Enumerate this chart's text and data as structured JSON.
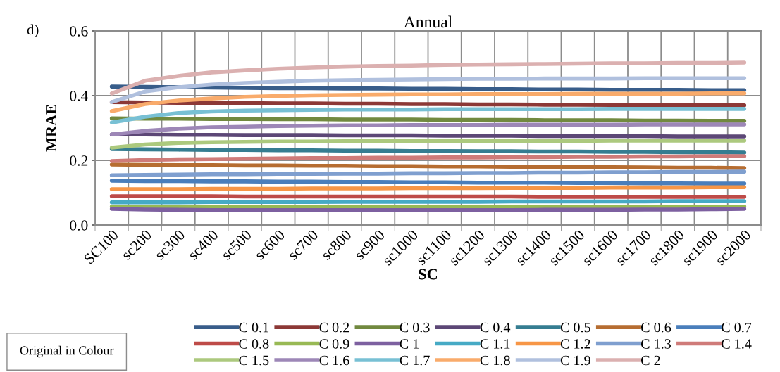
{
  "chart_data": {
    "type": "line",
    "title": "Annual",
    "xlabel": "SC",
    "ylabel": "MRAE",
    "annotations": [
      "d)",
      "Original in Colour"
    ],
    "categories": [
      "SC100",
      "sc200",
      "sc300",
      "sc400",
      "sc500",
      "sc600",
      "sc700",
      "sc800",
      "sc900",
      "sc1000",
      "sc1100",
      "sc1200",
      "sc1300",
      "sc1400",
      "sc1500",
      "sc1600",
      "sc1700",
      "sc1800",
      "sc1900",
      "sc2000"
    ],
    "ylim": [
      0,
      0.6
    ],
    "yticks": [
      {
        "value": 0,
        "label": "0.0"
      },
      {
        "value": 0.2,
        "label": "0.2"
      },
      {
        "value": 0.4,
        "label": "0.4"
      },
      {
        "value": 0.6,
        "label": "0.6"
      }
    ],
    "grid": true,
    "legend": "bottom",
    "marker": "none",
    "line_style": "solid",
    "series": [
      {
        "name": "C 0.1",
        "color": "#385d8a",
        "values": [
          0.428,
          0.427,
          0.426,
          0.425,
          0.424,
          0.423,
          0.423,
          0.422,
          0.422,
          0.421,
          0.421,
          0.42,
          0.42,
          0.419,
          0.419,
          0.418,
          0.418,
          0.418,
          0.417,
          0.417
        ]
      },
      {
        "name": "C 0.2",
        "color": "#8c3836",
        "values": [
          0.38,
          0.379,
          0.378,
          0.377,
          0.377,
          0.376,
          0.376,
          0.375,
          0.375,
          0.374,
          0.374,
          0.373,
          0.373,
          0.372,
          0.372,
          0.371,
          0.371,
          0.371,
          0.37,
          0.37
        ]
      },
      {
        "name": "C 0.3",
        "color": "#71893f",
        "values": [
          0.33,
          0.329,
          0.329,
          0.328,
          0.328,
          0.327,
          0.327,
          0.326,
          0.326,
          0.326,
          0.325,
          0.325,
          0.325,
          0.324,
          0.324,
          0.324,
          0.323,
          0.323,
          0.322,
          0.322
        ]
      },
      {
        "name": "C 0.4",
        "color": "#5c4776",
        "values": [
          0.28,
          0.28,
          0.279,
          0.279,
          0.278,
          0.278,
          0.278,
          0.277,
          0.277,
          0.277,
          0.276,
          0.276,
          0.276,
          0.275,
          0.275,
          0.275,
          0.275,
          0.274,
          0.274,
          0.274
        ]
      },
      {
        "name": "C 0.5",
        "color": "#357d91",
        "values": [
          0.235,
          0.234,
          0.233,
          0.232,
          0.232,
          0.231,
          0.231,
          0.23,
          0.23,
          0.229,
          0.229,
          0.228,
          0.228,
          0.227,
          0.227,
          0.226,
          0.226,
          0.225,
          0.225,
          0.224
        ]
      },
      {
        "name": "C 0.6",
        "color": "#b66d31",
        "values": [
          0.187,
          0.186,
          0.185,
          0.185,
          0.184,
          0.184,
          0.183,
          0.183,
          0.182,
          0.182,
          0.181,
          0.181,
          0.18,
          0.18,
          0.179,
          0.179,
          0.178,
          0.177,
          0.177,
          0.176
        ]
      },
      {
        "name": "C 0.7",
        "color": "#4a7ebb",
        "values": [
          0.137,
          0.136,
          0.136,
          0.135,
          0.135,
          0.134,
          0.134,
          0.133,
          0.133,
          0.132,
          0.132,
          0.131,
          0.131,
          0.131,
          0.13,
          0.13,
          0.129,
          0.129,
          0.128,
          0.128
        ]
      },
      {
        "name": "C 0.8",
        "color": "#be4b48",
        "values": [
          0.089,
          0.089,
          0.089,
          0.089,
          0.088,
          0.088,
          0.088,
          0.088,
          0.088,
          0.088,
          0.088,
          0.088,
          0.088,
          0.087,
          0.087,
          0.087,
          0.087,
          0.087,
          0.087,
          0.087
        ]
      },
      {
        "name": "C 0.9",
        "color": "#98b954",
        "values": [
          0.057,
          0.057,
          0.057,
          0.057,
          0.057,
          0.057,
          0.057,
          0.057,
          0.057,
          0.057,
          0.057,
          0.057,
          0.057,
          0.057,
          0.057,
          0.057,
          0.057,
          0.057,
          0.057,
          0.057
        ]
      },
      {
        "name": "C 1",
        "color": "#7d60a0",
        "values": [
          0.05,
          0.048,
          0.047,
          0.046,
          0.046,
          0.046,
          0.046,
          0.046,
          0.046,
          0.046,
          0.046,
          0.046,
          0.046,
          0.047,
          0.047,
          0.047,
          0.048,
          0.048,
          0.049,
          0.05
        ]
      },
      {
        "name": "C 1.1",
        "color": "#46aac5",
        "values": [
          0.07,
          0.07,
          0.07,
          0.071,
          0.071,
          0.071,
          0.071,
          0.072,
          0.072,
          0.072,
          0.072,
          0.072,
          0.073,
          0.073,
          0.073,
          0.073,
          0.073,
          0.074,
          0.074,
          0.074
        ]
      },
      {
        "name": "C 1.2",
        "color": "#f79646",
        "values": [
          0.111,
          0.111,
          0.111,
          0.112,
          0.112,
          0.112,
          0.113,
          0.113,
          0.113,
          0.114,
          0.114,
          0.114,
          0.115,
          0.115,
          0.115,
          0.116,
          0.116,
          0.116,
          0.117,
          0.117
        ]
      },
      {
        "name": "C 1.3",
        "color": "#7f9fcf",
        "values": [
          0.154,
          0.155,
          0.156,
          0.157,
          0.157,
          0.158,
          0.158,
          0.159,
          0.159,
          0.16,
          0.16,
          0.161,
          0.161,
          0.162,
          0.162,
          0.163,
          0.163,
          0.164,
          0.164,
          0.165
        ]
      },
      {
        "name": "C 1.4",
        "color": "#cf7b79",
        "values": [
          0.198,
          0.201,
          0.203,
          0.204,
          0.205,
          0.206,
          0.207,
          0.207,
          0.208,
          0.208,
          0.209,
          0.209,
          0.21,
          0.21,
          0.211,
          0.211,
          0.212,
          0.212,
          0.213,
          0.213
        ]
      },
      {
        "name": "C 1.5",
        "color": "#acc97e",
        "values": [
          0.239,
          0.249,
          0.254,
          0.256,
          0.257,
          0.258,
          0.258,
          0.259,
          0.259,
          0.259,
          0.26,
          0.26,
          0.26,
          0.26,
          0.26,
          0.261,
          0.261,
          0.261,
          0.261,
          0.261
        ]
      },
      {
        "name": "C 1.6",
        "color": "#9d87b7",
        "values": [
          0.28,
          0.291,
          0.298,
          0.302,
          0.304,
          0.306,
          0.307,
          0.308,
          0.308,
          0.309,
          0.309,
          0.309,
          0.31,
          0.31,
          0.31,
          0.31,
          0.311,
          0.311,
          0.311,
          0.311
        ]
      },
      {
        "name": "C 1.7",
        "color": "#78c0d4",
        "values": [
          0.317,
          0.335,
          0.346,
          0.351,
          0.354,
          0.355,
          0.356,
          0.357,
          0.357,
          0.357,
          0.358,
          0.358,
          0.358,
          0.358,
          0.358,
          0.359,
          0.359,
          0.359,
          0.359,
          0.359
        ]
      },
      {
        "name": "C 1.8",
        "color": "#f9ab6b",
        "values": [
          0.352,
          0.374,
          0.385,
          0.391,
          0.396,
          0.399,
          0.401,
          0.402,
          0.403,
          0.404,
          0.404,
          0.405,
          0.405,
          0.405,
          0.406,
          0.406,
          0.406,
          0.406,
          0.407,
          0.407
        ]
      },
      {
        "name": "C 1.9",
        "color": "#b0c0de",
        "values": [
          0.38,
          0.413,
          0.426,
          0.434,
          0.439,
          0.443,
          0.446,
          0.448,
          0.449,
          0.45,
          0.451,
          0.452,
          0.452,
          0.453,
          0.453,
          0.453,
          0.454,
          0.454,
          0.454,
          0.454
        ]
      },
      {
        "name": "C 2",
        "color": "#dbb0b0",
        "values": [
          0.407,
          0.446,
          0.461,
          0.472,
          0.478,
          0.483,
          0.487,
          0.49,
          0.492,
          0.493,
          0.495,
          0.496,
          0.497,
          0.498,
          0.499,
          0.5,
          0.5,
          0.501,
          0.501,
          0.502
        ]
      }
    ]
  }
}
